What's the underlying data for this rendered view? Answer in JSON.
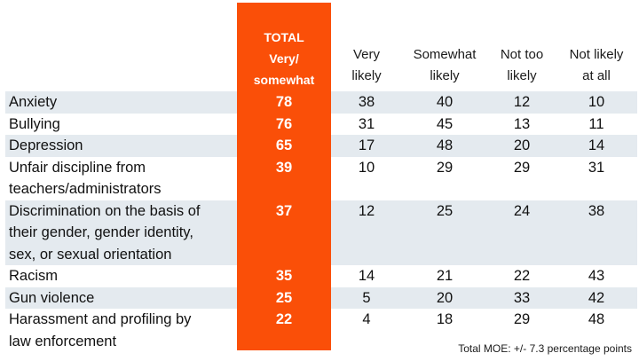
{
  "chart_data": {
    "type": "table",
    "columns": {
      "total": [
        "TOTAL",
        "Very/",
        "somewhat"
      ],
      "very_likely": [
        "Very",
        "likely"
      ],
      "somewhat_likely": [
        "Somewhat",
        "likely"
      ],
      "not_too_likely": [
        "Not too",
        "likely"
      ],
      "not_likely_at_all": [
        "Not likely",
        "at all"
      ]
    },
    "rows": [
      {
        "label": [
          "Anxiety"
        ],
        "total": 78,
        "very": 38,
        "somewhat": 40,
        "not_too": 12,
        "not_at_all": 10
      },
      {
        "label": [
          "Bullying"
        ],
        "total": 76,
        "very": 31,
        "somewhat": 45,
        "not_too": 13,
        "not_at_all": 11
      },
      {
        "label": [
          "Depression"
        ],
        "total": 65,
        "very": 17,
        "somewhat": 48,
        "not_too": 20,
        "not_at_all": 14
      },
      {
        "label": [
          "Unfair discipline from",
          "teachers/administrators"
        ],
        "total": 39,
        "very": 10,
        "somewhat": 29,
        "not_too": 29,
        "not_at_all": 31
      },
      {
        "label": [
          "Discrimination on the basis of",
          "their gender, gender identity,",
          "sex, or sexual orientation"
        ],
        "total": 37,
        "very": 12,
        "somewhat": 25,
        "not_too": 24,
        "not_at_all": 38
      },
      {
        "label": [
          "Racism"
        ],
        "total": 35,
        "very": 14,
        "somewhat": 21,
        "not_too": 22,
        "not_at_all": 43
      },
      {
        "label": [
          "Gun violence"
        ],
        "total": 25,
        "very": 5,
        "somewhat": 20,
        "not_too": 33,
        "not_at_all": 42
      },
      {
        "label": [
          "Harassment and profiling by",
          "law enforcement"
        ],
        "total": 22,
        "very": 4,
        "somewhat": 18,
        "not_too": 29,
        "not_at_all": 48
      }
    ],
    "note": "Total MOE: +/- 7.3 percentage points",
    "colors": {
      "highlight": "#fa4f08",
      "band": "#e4eaef",
      "text": "#111111"
    }
  }
}
